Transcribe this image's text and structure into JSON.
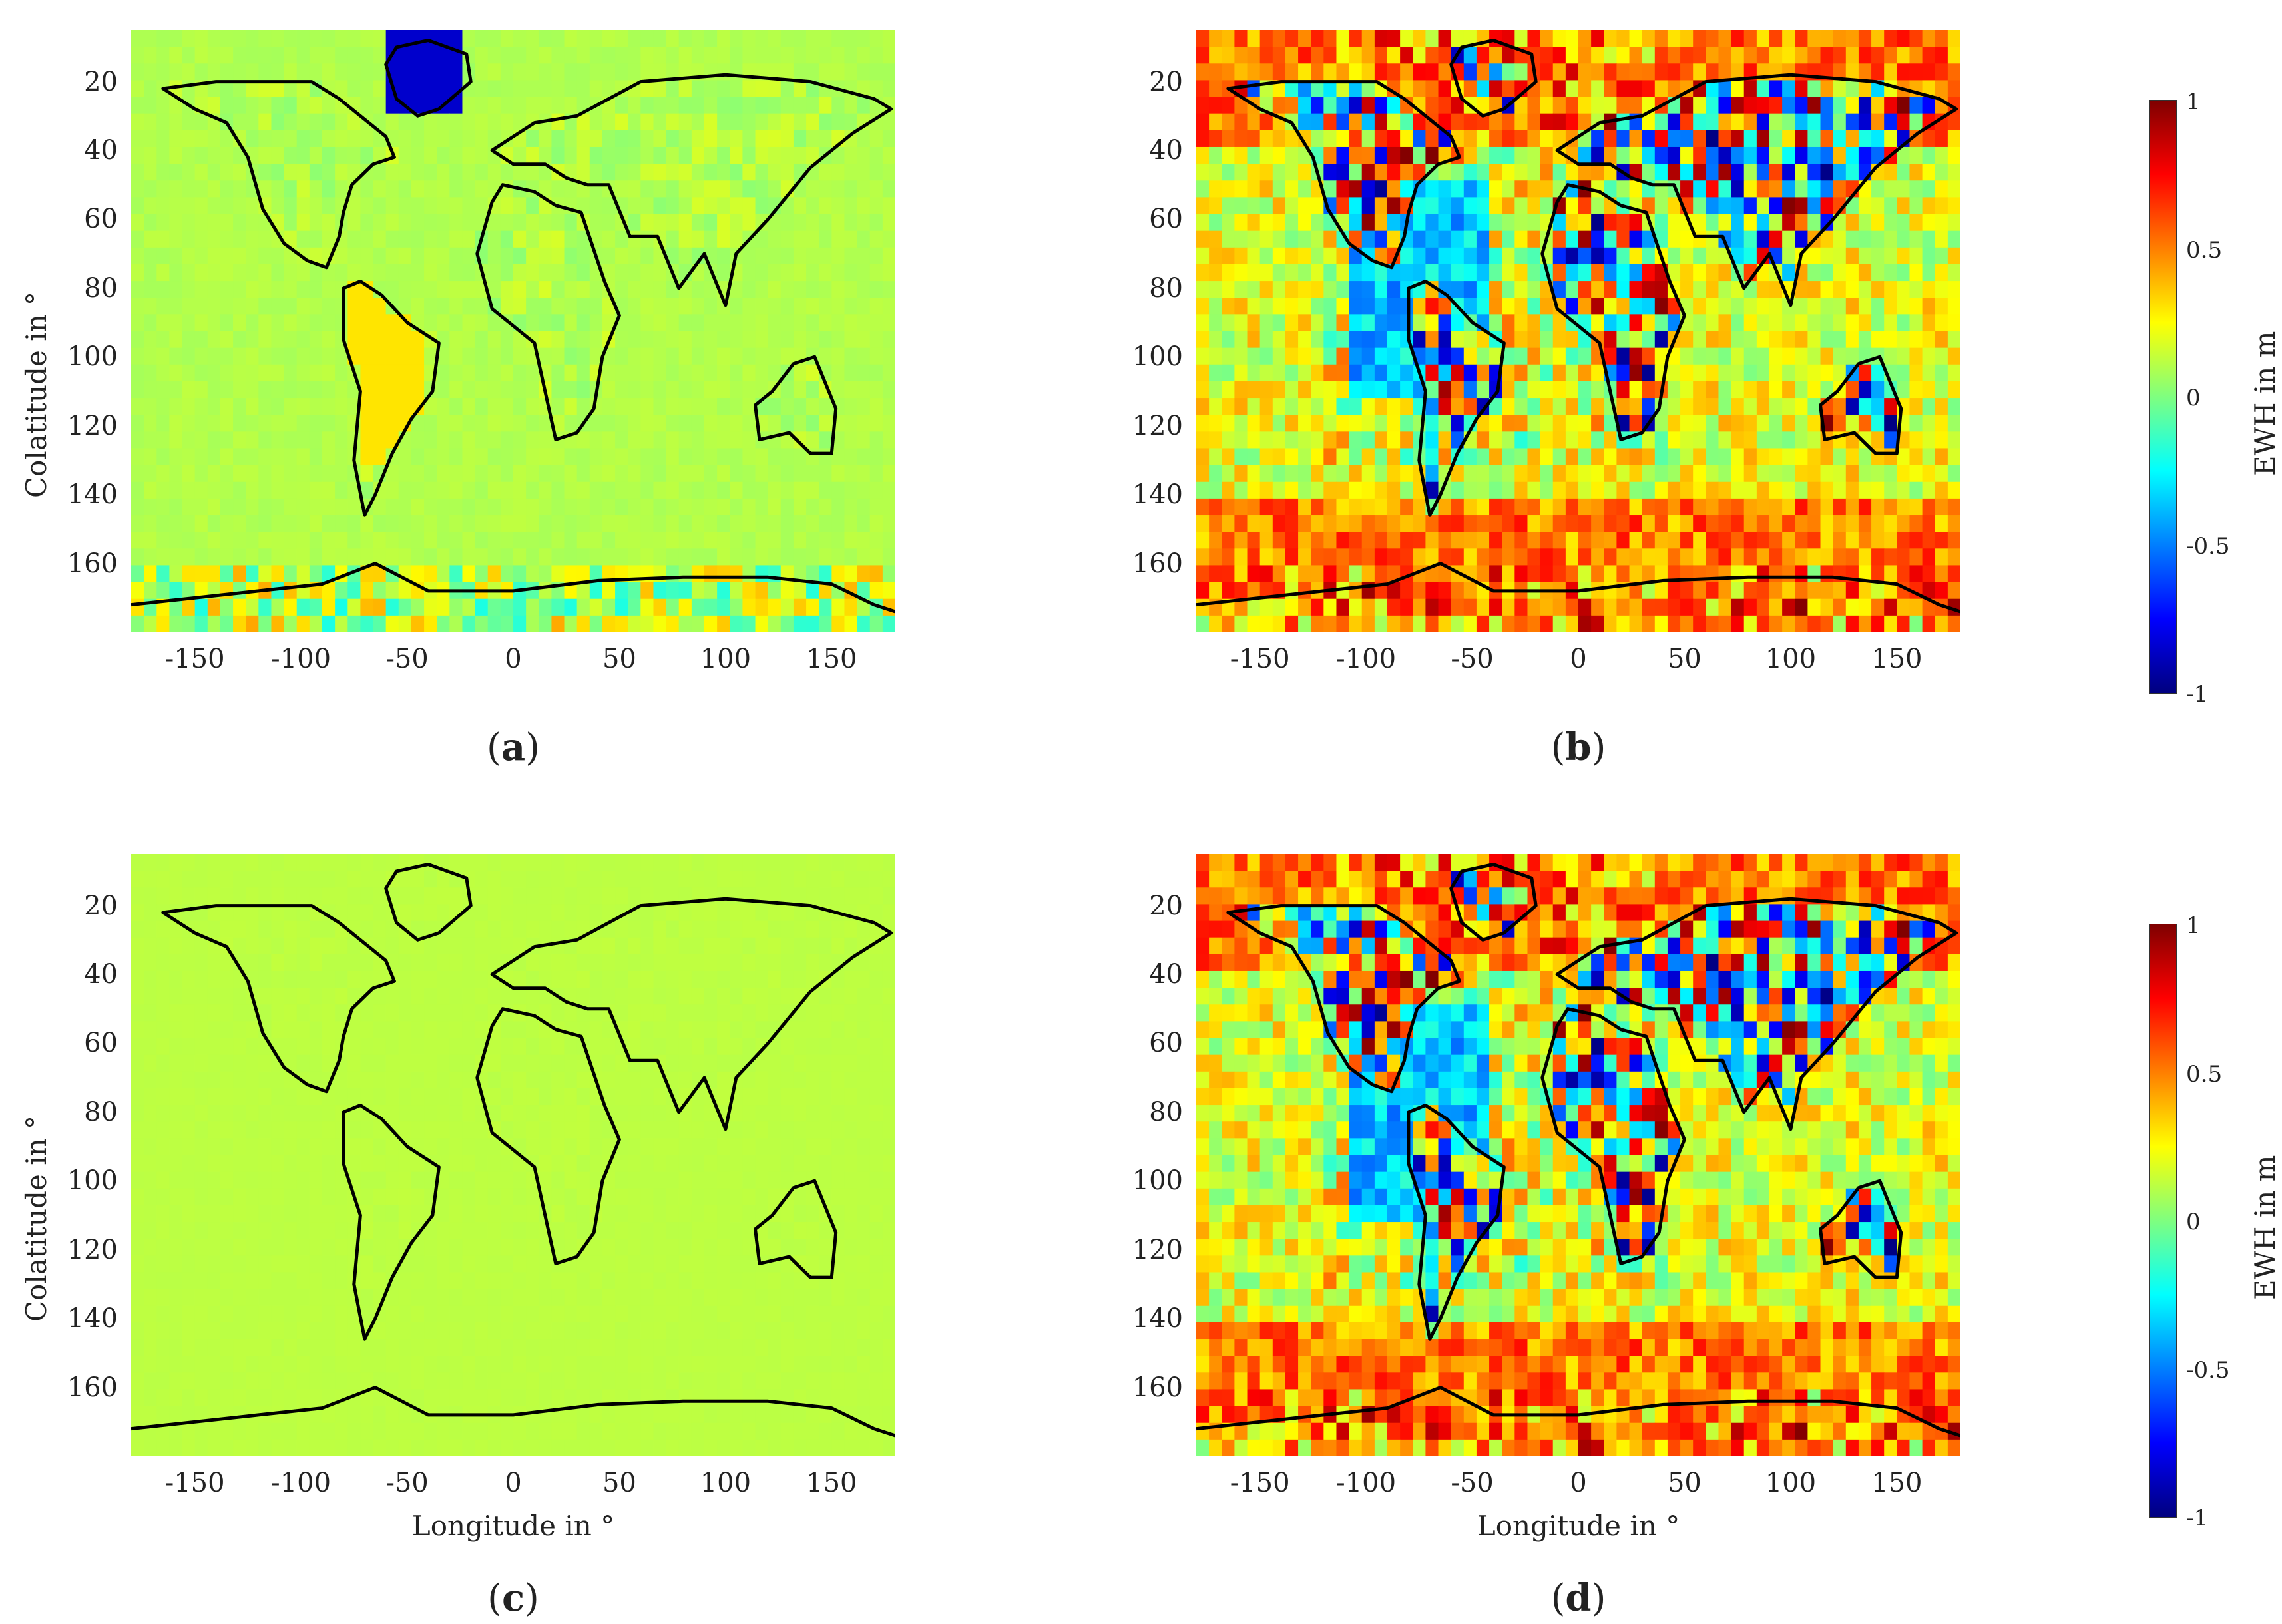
{
  "figure": {
    "panels": [
      {
        "id": "a",
        "caption_letter": "a",
        "style": "smooth",
        "show_xlabel": false
      },
      {
        "id": "b",
        "caption_letter": "b",
        "style": "noisy",
        "show_xlabel": false
      },
      {
        "id": "c",
        "caption_letter": "c",
        "style": "flat",
        "show_xlabel": true
      },
      {
        "id": "d",
        "caption_letter": "d",
        "style": "noisy",
        "show_xlabel": true
      }
    ],
    "y_axis_label": "Colatitude in °",
    "x_axis_label": "Longitude in °",
    "y_ticks": [
      "20",
      "40",
      "60",
      "80",
      "100",
      "120",
      "140",
      "160"
    ],
    "x_ticks": [
      "-150",
      "-100",
      "-50",
      "0",
      "50",
      "100",
      "150"
    ],
    "colorbar": {
      "label": "EWH in m",
      "ticks": [
        "1",
        "0.5",
        "0",
        "-0.5",
        "-1"
      ],
      "range": [
        -1,
        1
      ],
      "colormap": "jet"
    }
  },
  "chart_data": [
    {
      "type": "heatmap",
      "panel": "a",
      "x_range": [
        -180,
        180
      ],
      "y_range": [
        0,
        180
      ],
      "xlabel": "",
      "ylabel": "Colatitude in °",
      "color_range": [
        -1,
        1
      ],
      "colorbar_label": "EWH in m"
    },
    {
      "type": "heatmap",
      "panel": "b",
      "x_range": [
        -180,
        180
      ],
      "y_range": [
        0,
        180
      ],
      "xlabel": "",
      "ylabel": "",
      "color_range": [
        -1,
        1
      ],
      "colorbar_label": "EWH in m"
    },
    {
      "type": "heatmap",
      "panel": "c",
      "x_range": [
        -180,
        180
      ],
      "y_range": [
        0,
        180
      ],
      "xlabel": "Longitude in °",
      "ylabel": "Colatitude in °",
      "color_range": [
        -1,
        1
      ],
      "colorbar_label": "EWH in m"
    },
    {
      "type": "heatmap",
      "panel": "d",
      "x_range": [
        -180,
        180
      ],
      "y_range": [
        0,
        180
      ],
      "xlabel": "Longitude in °",
      "ylabel": "",
      "color_range": [
        -1,
        1
      ],
      "colorbar_label": "EWH in m"
    }
  ]
}
